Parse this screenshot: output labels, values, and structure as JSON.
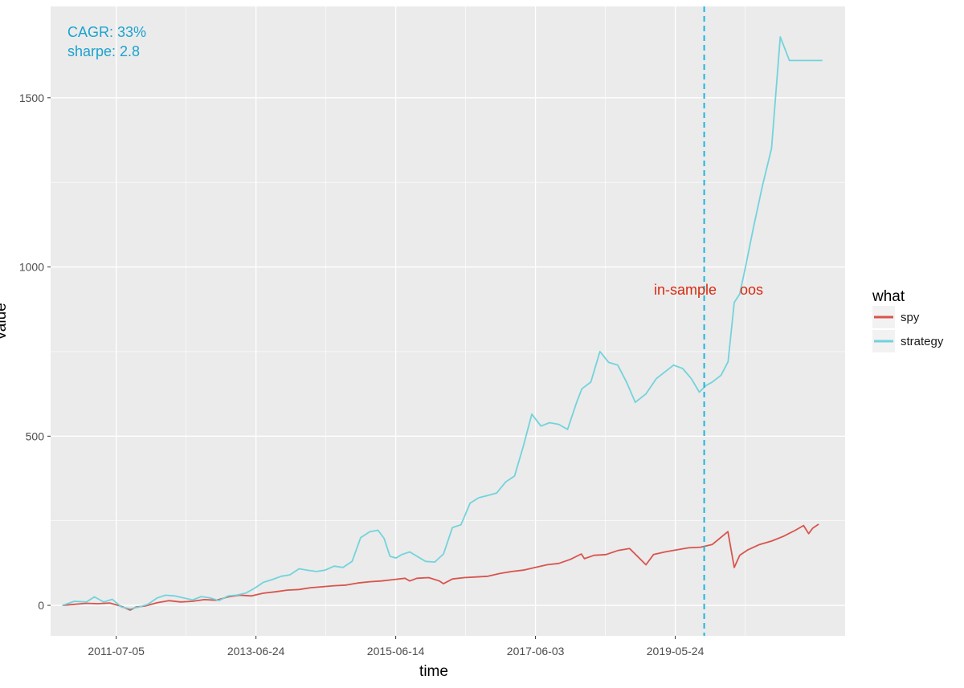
{
  "chart_data": {
    "type": "line",
    "title": "",
    "xlabel": "time",
    "ylabel": "value",
    "x_tick_labels": [
      "2011-07-05",
      "2013-06-24",
      "2015-06-14",
      "2017-06-03",
      "2019-05-24"
    ],
    "y_tick_labels": [
      "0",
      "500",
      "1000",
      "1500"
    ],
    "y_ticks": [
      0,
      500,
      1000,
      1500
    ],
    "ylim": [
      -90,
      1770
    ],
    "xlim": [
      "2010-08-01",
      "2021-10-15"
    ],
    "grid": true,
    "legend": {
      "title": "what",
      "position": "right",
      "items": [
        "spy",
        "strategy"
      ]
    },
    "colors": {
      "spy": "#d9544d",
      "strategy": "#72d3dc",
      "divider": "#1cb5e0",
      "stats_text": "#1ba3cf",
      "region_text": "#d62a0f",
      "panel": "#ebebeb",
      "grid": "#ffffff"
    },
    "stats": {
      "cagr": "CAGR: 33%",
      "sharpe": "sharpe: 2.8"
    },
    "divider": {
      "x": "2019-10-20",
      "style": "dashed",
      "left_label": "in-sample",
      "right_label": "oos"
    },
    "series": [
      {
        "name": "spy",
        "x": [
          "2010-10-01",
          "2010-12-01",
          "2011-02-01",
          "2011-04-01",
          "2011-06-01",
          "2011-08-01",
          "2011-09-15",
          "2011-10-15",
          "2011-12-01",
          "2012-02-01",
          "2012-04-01",
          "2012-06-01",
          "2012-08-01",
          "2012-10-01",
          "2012-12-01",
          "2013-02-01",
          "2013-04-01",
          "2013-06-01",
          "2013-08-01",
          "2013-10-01",
          "2013-12-01",
          "2014-02-01",
          "2014-04-01",
          "2014-06-01",
          "2014-08-01",
          "2014-10-01",
          "2014-12-01",
          "2015-02-01",
          "2015-04-01",
          "2015-06-01",
          "2015-08-01",
          "2015-08-25",
          "2015-10-01",
          "2015-12-01",
          "2016-01-25",
          "2016-02-15",
          "2016-04-01",
          "2016-06-01",
          "2016-08-01",
          "2016-10-01",
          "2016-12-01",
          "2017-02-01",
          "2017-04-01",
          "2017-06-01",
          "2017-08-01",
          "2017-10-01",
          "2017-12-01",
          "2018-01-25",
          "2018-02-10",
          "2018-04-01",
          "2018-06-01",
          "2018-08-01",
          "2018-10-01",
          "2018-12-24",
          "2019-02-01",
          "2019-04-01",
          "2019-06-01",
          "2019-08-01",
          "2019-10-01",
          "2019-12-01",
          "2020-02-19",
          "2020-03-23",
          "2020-04-20",
          "2020-06-01",
          "2020-08-01",
          "2020-10-01",
          "2020-12-01",
          "2021-02-01",
          "2021-03-15",
          "2021-04-10",
          "2021-05-01",
          "2021-06-01"
        ],
        "values": [
          0,
          3,
          6,
          5,
          7,
          -3,
          -14,
          -5,
          -2,
          8,
          14,
          10,
          12,
          17,
          15,
          25,
          30,
          28,
          36,
          40,
          45,
          47,
          52,
          55,
          58,
          60,
          66,
          70,
          72,
          76,
          80,
          72,
          80,
          82,
          72,
          64,
          78,
          82,
          84,
          86,
          94,
          100,
          104,
          112,
          120,
          124,
          136,
          152,
          138,
          148,
          150,
          162,
          168,
          120,
          150,
          158,
          164,
          170,
          172,
          180,
          218,
          112,
          148,
          164,
          180,
          190,
          204,
          222,
          236,
          212,
          228,
          240
        ]
      },
      {
        "name": "strategy",
        "x": [
          "2010-10-01",
          "2010-12-01",
          "2011-02-01",
          "2011-03-15",
          "2011-05-01",
          "2011-06-15",
          "2011-08-01",
          "2011-09-15",
          "2011-10-30",
          "2011-12-15",
          "2012-02-01",
          "2012-03-15",
          "2012-05-01",
          "2012-06-15",
          "2012-08-01",
          "2012-09-15",
          "2012-11-01",
          "2012-12-15",
          "2013-02-01",
          "2013-03-15",
          "2013-05-01",
          "2013-06-15",
          "2013-08-01",
          "2013-09-15",
          "2013-11-01",
          "2013-12-15",
          "2014-02-01",
          "2014-03-15",
          "2014-05-01",
          "2014-06-15",
          "2014-08-01",
          "2014-09-15",
          "2014-11-01",
          "2014-12-15",
          "2015-02-01",
          "2015-03-15",
          "2015-04-15",
          "2015-05-15",
          "2015-06-15",
          "2015-07-15",
          "2015-08-25",
          "2015-10-01",
          "2015-11-15",
          "2016-01-01",
          "2016-02-15",
          "2016-04-01",
          "2016-05-15",
          "2016-07-01",
          "2016-08-15",
          "2016-10-01",
          "2016-11-15",
          "2017-01-01",
          "2017-02-15",
          "2017-04-01",
          "2017-05-15",
          "2017-07-01",
          "2017-08-15",
          "2017-10-01",
          "2017-11-15",
          "2018-01-01",
          "2018-01-28",
          "2018-03-15",
          "2018-05-01",
          "2018-06-15",
          "2018-08-01",
          "2018-09-15",
          "2018-10-30",
          "2018-12-24",
          "2019-02-15",
          "2019-04-01",
          "2019-05-15",
          "2019-07-01",
          "2019-08-15",
          "2019-09-25",
          "2019-10-30",
          "2019-12-01",
          "2020-01-15",
          "2020-02-20",
          "2020-03-23",
          "2020-04-20",
          "2020-05-20",
          "2020-07-01",
          "2020-08-15",
          "2020-10-01",
          "2020-11-15",
          "2021-01-01",
          "2021-02-15",
          "2021-03-15",
          "2021-04-15",
          "2021-05-15",
          "2021-06-20"
        ],
        "values": [
          0,
          12,
          10,
          25,
          10,
          18,
          -5,
          -10,
          -5,
          3,
          22,
          30,
          28,
          22,
          16,
          26,
          22,
          14,
          28,
          30,
          36,
          50,
          68,
          76,
          86,
          90,
          108,
          104,
          100,
          104,
          116,
          112,
          130,
          200,
          218,
          222,
          198,
          145,
          140,
          150,
          158,
          145,
          130,
          128,
          152,
          230,
          238,
          302,
          318,
          325,
          332,
          365,
          382,
          470,
          565,
          530,
          540,
          535,
          520,
          600,
          640,
          660,
          750,
          718,
          710,
          660,
          600,
          625,
          670,
          690,
          710,
          700,
          670,
          630,
          650,
          660,
          680,
          720,
          895,
          920,
          1000,
          1120,
          1240,
          1350,
          1680,
          1610,
          1610,
          1610,
          1610,
          1610,
          1610
        ]
      }
    ]
  }
}
